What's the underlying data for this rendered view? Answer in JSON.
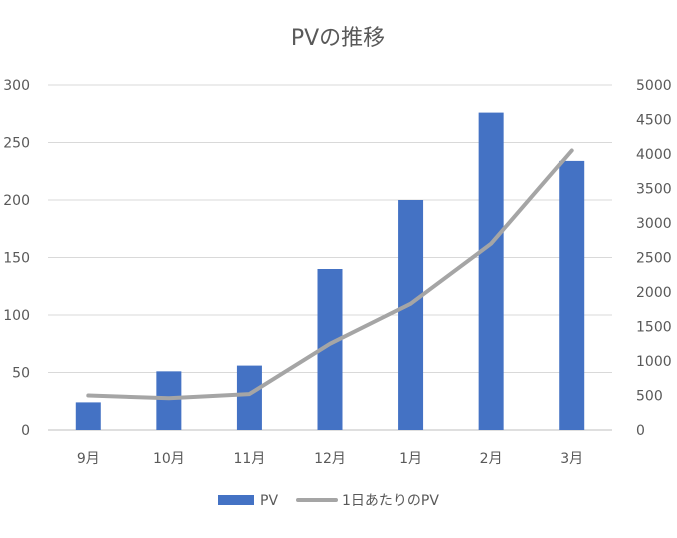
{
  "chart_data": {
    "type": "bar",
    "title": "PVの推移",
    "categories": [
      "9月",
      "10月",
      "11月",
      "12月",
      "1月",
      "2月",
      "3月"
    ],
    "series": [
      {
        "name": "PV",
        "type": "bar",
        "axis": "left",
        "color": "#4472C4",
        "values": [
          24,
          51,
          56,
          140,
          200,
          276,
          234
        ]
      },
      {
        "name": "1日あたりのPV",
        "type": "line",
        "axis": "right",
        "color": "#A5A5A5",
        "values": [
          500,
          460,
          520,
          1250,
          1830,
          2700,
          4050
        ]
      }
    ],
    "ylim": [
      0,
      300
    ],
    "y_ticks": [
      0,
      50,
      100,
      150,
      200,
      250,
      300
    ],
    "y2lim": [
      0,
      5000
    ],
    "y2_ticks": [
      0,
      500,
      1000,
      1500,
      2000,
      2500,
      3000,
      3500,
      4000,
      4500,
      5000
    ],
    "grid": true,
    "legend_position": "bottom"
  }
}
